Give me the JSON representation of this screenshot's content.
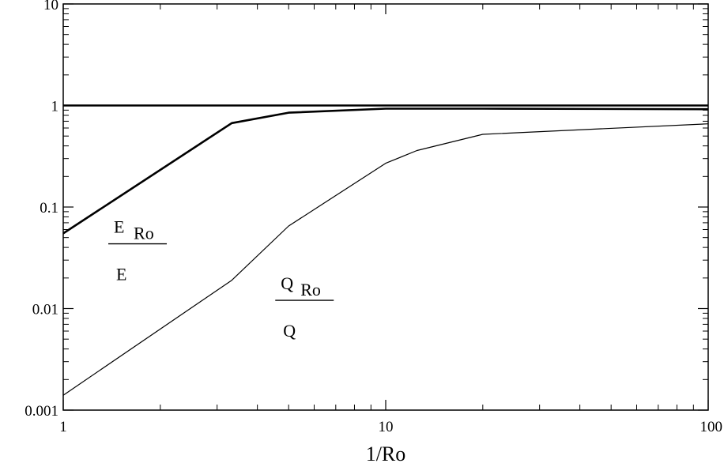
{
  "chart_data": {
    "type": "line",
    "title": "",
    "xlabel": "1/Ro",
    "ylabel": "",
    "x_scale": "log",
    "y_scale": "log",
    "xlim": [
      1,
      100
    ],
    "ylim": [
      0.001,
      10
    ],
    "x_ticks": [
      {
        "value": 1,
        "label": "1"
      },
      {
        "value": 10,
        "label": "10"
      },
      {
        "value": 100,
        "label": "100"
      }
    ],
    "y_ticks": [
      {
        "value": 0.001,
        "label": "0.001"
      },
      {
        "value": 0.01,
        "label": "0.01"
      },
      {
        "value": 0.1,
        "label": "0.1"
      },
      {
        "value": 1,
        "label": "1"
      },
      {
        "value": 10,
        "label": "10"
      }
    ],
    "grid": false,
    "series": [
      {
        "color": "#000000",
        "line_weight": "thick",
        "x": [
          1,
          100
        ],
        "y": [
          1,
          1
        ]
      },
      {
        "color": "#000000",
        "line_weight": "thick",
        "x": [
          1,
          3.33,
          5,
          10,
          20,
          100
        ],
        "y": [
          0.055,
          0.67,
          0.85,
          0.93,
          0.93,
          0.92
        ]
      },
      {
        "color": "#000000",
        "line_weight": "thin",
        "x": [
          1,
          3.33,
          5,
          10,
          12.5,
          20,
          100
        ],
        "y": [
          0.0014,
          0.019,
          0.065,
          0.27,
          0.36,
          0.52,
          0.66
        ]
      }
    ],
    "annotations": [
      {
        "numerator": "E",
        "subscript": "Ro",
        "denominator": "E",
        "x": 1.7,
        "y": 0.045
      },
      {
        "numerator": "Q",
        "subscript": "Ro",
        "denominator": "Q",
        "x": 5.6,
        "y": 0.0125
      }
    ]
  }
}
